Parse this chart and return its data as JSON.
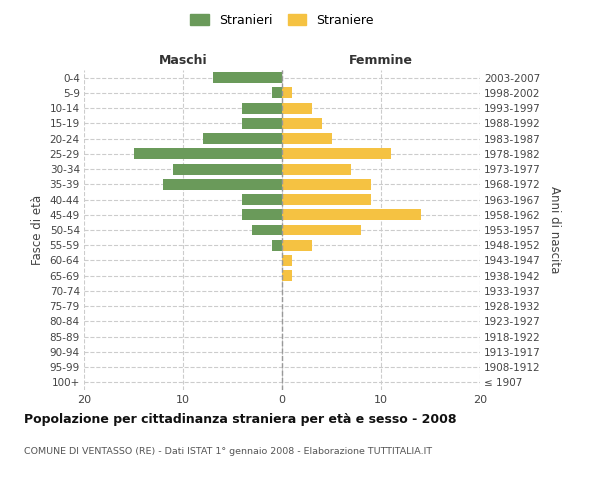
{
  "age_groups": [
    "100+",
    "95-99",
    "90-94",
    "85-89",
    "80-84",
    "75-79",
    "70-74",
    "65-69",
    "60-64",
    "55-59",
    "50-54",
    "45-49",
    "40-44",
    "35-39",
    "30-34",
    "25-29",
    "20-24",
    "15-19",
    "10-14",
    "5-9",
    "0-4"
  ],
  "birth_years": [
    "≤ 1907",
    "1908-1912",
    "1913-1917",
    "1918-1922",
    "1923-1927",
    "1928-1932",
    "1933-1937",
    "1938-1942",
    "1943-1947",
    "1948-1952",
    "1953-1957",
    "1958-1962",
    "1963-1967",
    "1968-1972",
    "1973-1977",
    "1978-1982",
    "1983-1987",
    "1988-1992",
    "1993-1997",
    "1998-2002",
    "2003-2007"
  ],
  "maschi": [
    0,
    0,
    0,
    0,
    0,
    0,
    0,
    0,
    0,
    1,
    3,
    4,
    4,
    12,
    11,
    15,
    8,
    4,
    4,
    1,
    7
  ],
  "femmine": [
    0,
    0,
    0,
    0,
    0,
    0,
    0,
    1,
    1,
    3,
    8,
    14,
    9,
    9,
    7,
    11,
    5,
    4,
    3,
    1,
    0
  ],
  "maschi_color": "#6a9a5a",
  "femmine_color": "#f5c242",
  "title_main": "Popolazione per cittadinanza straniera per età e sesso - 2008",
  "title_sub": "COMUNE DI VENTASSO (RE) - Dati ISTAT 1° gennaio 2008 - Elaborazione TUTTITALIA.IT",
  "legend_maschi": "Stranieri",
  "legend_femmine": "Straniere",
  "label_maschi": "Maschi",
  "label_femmine": "Femmine",
  "ylabel_left": "Fasce di età",
  "ylabel_right": "Anni di nascita",
  "xlim": 20,
  "bg_color": "#ffffff",
  "grid_color": "#cccccc"
}
